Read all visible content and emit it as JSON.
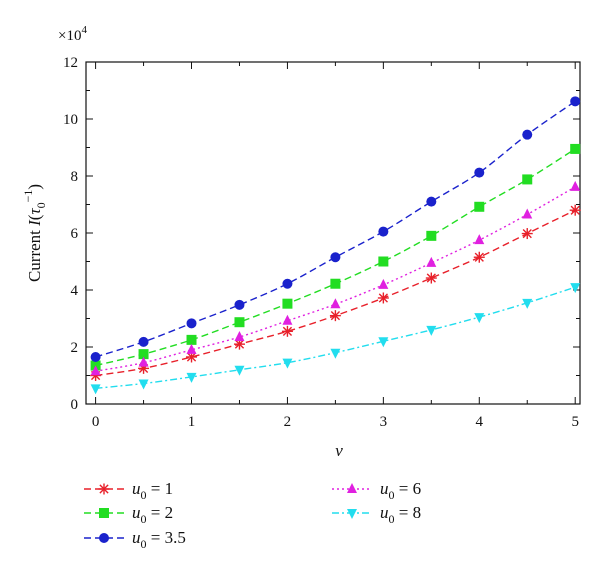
{
  "chart_data": {
    "type": "line",
    "multiplier_label": "×10",
    "multiplier_exponent": "4",
    "ylabel": {
      "prefix": "Current ",
      "var": "I",
      "open": "(",
      "tau": "τ",
      "sub": "0",
      "sup": "−1",
      "close": ")"
    },
    "xlabel": "v",
    "xlim": [
      -0.1,
      5.05
    ],
    "ylim": [
      0,
      12
    ],
    "x_ticks": [
      "0",
      "1",
      "2",
      "3",
      "4",
      "5"
    ],
    "y_ticks": [
      "0",
      "2",
      "4",
      "6",
      "8",
      "10",
      "12"
    ],
    "x": [
      0,
      0.5,
      1,
      1.5,
      2,
      2.5,
      3,
      3.5,
      4,
      4.5,
      5
    ],
    "series": [
      {
        "var": "u",
        "sub": "0",
        "value": " = 1",
        "color": "#e8202a",
        "marker": "star",
        "dash": "dashed",
        "values": [
          1.0,
          1.25,
          1.65,
          2.1,
          2.55,
          3.1,
          3.72,
          4.42,
          5.15,
          5.98,
          6.8
        ]
      },
      {
        "var": "u",
        "sub": "0",
        "value": " = 2",
        "color": "#22dd22",
        "marker": "square",
        "dash": "dashed",
        "values": [
          1.35,
          1.75,
          2.25,
          2.87,
          3.52,
          4.22,
          5.0,
          5.9,
          6.92,
          7.88,
          8.95
        ]
      },
      {
        "var": "u",
        "sub": "0",
        "value": " = 3.5",
        "color": "#1a22cc",
        "marker": "circle",
        "dash": "dashed",
        "values": [
          1.65,
          2.18,
          2.83,
          3.48,
          4.22,
          5.15,
          6.05,
          7.1,
          8.12,
          9.45,
          10.62
        ]
      },
      {
        "var": "u",
        "sub": "0",
        "value": " = 6",
        "color": "#e020e0",
        "marker": "triangle-up",
        "dash": "dotted",
        "values": [
          1.15,
          1.45,
          1.9,
          2.35,
          2.92,
          3.5,
          4.18,
          4.95,
          5.75,
          6.65,
          7.62
        ]
      },
      {
        "var": "u",
        "sub": "0",
        "value": " = 8",
        "color": "#22ddee",
        "marker": "triangle-down",
        "dash": "dashdot",
        "values": [
          0.55,
          0.72,
          0.95,
          1.2,
          1.45,
          1.8,
          2.2,
          2.6,
          3.05,
          3.55,
          4.1
        ]
      }
    ],
    "legend_position": "bottom",
    "grid": false
  }
}
